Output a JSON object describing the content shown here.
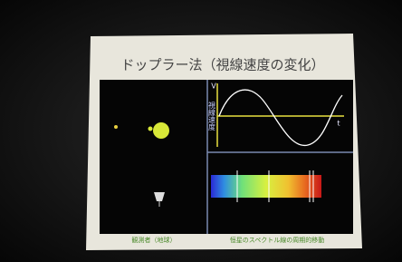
{
  "slide": {
    "title": "ドップラー法（視線速度の変化）",
    "graph": {
      "y_label": "視線速度",
      "y_axis": "V",
      "x_axis": "t"
    },
    "captions": [
      "観測者（地球）",
      "恒星のスペクトル線の周期的移動"
    ]
  }
}
